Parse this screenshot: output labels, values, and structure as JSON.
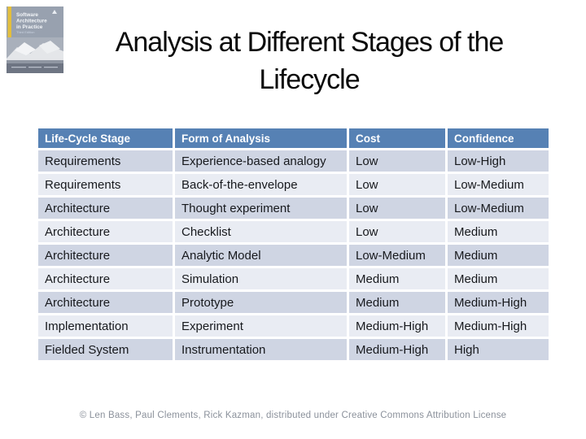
{
  "slide": {
    "title_lines": [
      "Analysis at Different Stages of the",
      "Lifecycle"
    ]
  },
  "book_cover": {
    "title_lines": [
      "Software",
      "Architecture",
      "in Practice"
    ],
    "edition": "Third Edition"
  },
  "table": {
    "headers": [
      "Life-Cycle Stage",
      "Form of Analysis",
      "Cost",
      "Confidence"
    ],
    "rows": [
      [
        "Requirements",
        "Experience-based analogy",
        "Low",
        "Low-High"
      ],
      [
        "Requirements",
        "Back-of-the-envelope",
        "Low",
        "Low-Medium"
      ],
      [
        "Architecture",
        "Thought experiment",
        "Low",
        "Low-Medium"
      ],
      [
        "Architecture",
        "Checklist",
        "Low",
        "Medium"
      ],
      [
        "Architecture",
        "Analytic Model",
        "Low-Medium",
        "Medium"
      ],
      [
        "Architecture",
        "Simulation",
        "Medium",
        "Medium"
      ],
      [
        "Architecture",
        "Prototype",
        "Medium",
        "Medium-High"
      ],
      [
        "Implementation",
        "Experiment",
        "Medium-High",
        "Medium-High"
      ],
      [
        "Fielded System",
        "Instrumentation",
        "Medium-High",
        "High"
      ]
    ]
  },
  "footer": {
    "credit": "© Len Bass, Paul Clements, Rick Kazman, distributed under Creative Commons Attribution License"
  },
  "colors": {
    "header_bg": "#5681B4",
    "row_dark": "#CFD5E3",
    "row_light": "#E9ECF3",
    "footer_text": "#8B919B",
    "cover_bg": "#98A1AF",
    "cover_stripe": "#E3BE3C"
  }
}
